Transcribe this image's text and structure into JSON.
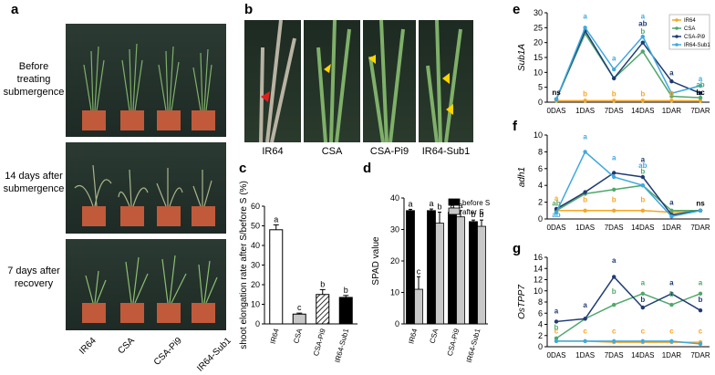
{
  "panel_letters": [
    "a",
    "b",
    "c",
    "d",
    "e",
    "f",
    "g"
  ],
  "panel_a": {
    "rows": [
      "Before treating submergence",
      "14 days after submergence",
      "7 days after recovery"
    ],
    "cultivars": [
      "IR64",
      "CSA",
      "CSA-Pi9",
      "IR64-Sub1"
    ]
  },
  "panel_b": {
    "labels": [
      "IR64",
      "CSA",
      "CSA-Pi9",
      "IR64-Sub1"
    ]
  },
  "colors": {
    "IR64": "#f5a623",
    "CSA": "#4fa86a",
    "CSA-Pi9": "#1f3b73",
    "IR64-Sub1": "#3fa9df"
  },
  "chart_data": [
    {
      "panel": "c",
      "type": "bar",
      "categories": [
        "IR64",
        "CSA",
        "CSA-Pi9",
        "IR64-Sub1"
      ],
      "values": [
        48,
        5,
        15,
        13.5
      ],
      "errors": [
        2.5,
        0.5,
        2.5,
        1
      ],
      "letters": [
        "a",
        "c",
        "b",
        "b"
      ],
      "ylabel": "shoot elongation rate after S/before S (%)",
      "ylim": [
        0,
        60
      ],
      "yticks": [
        0,
        10,
        20,
        30,
        40,
        50,
        60
      ]
    },
    {
      "panel": "d",
      "type": "bar",
      "categories": [
        "IR64",
        "CSA",
        "CSA-Pi9",
        "IR64-Sub1"
      ],
      "series": [
        {
          "name": "before S",
          "values": [
            36,
            36,
            35.5,
            32.5
          ],
          "errors": [
            0.4,
            0.5,
            0.5,
            0.5
          ],
          "letters": [
            "a",
            "a",
            "a",
            "b"
          ]
        },
        {
          "name": "after S",
          "values": [
            11,
            32,
            34,
            31
          ],
          "errors": [
            4,
            3.5,
            2,
            2
          ],
          "letters": [
            "c",
            "b",
            "a",
            "b"
          ]
        }
      ],
      "ylabel": "SPAD value",
      "ylim": [
        0,
        40
      ],
      "yticks": [
        0,
        10,
        20,
        30,
        40
      ]
    },
    {
      "panel": "e",
      "type": "line",
      "x": [
        "0DAS",
        "1DAS",
        "7DAS",
        "14DAS",
        "1DAR",
        "7DAR"
      ],
      "ylabel": "Sub1A",
      "ylim": [
        0,
        30
      ],
      "yticks": [
        0,
        5,
        10,
        15,
        20,
        25,
        30
      ],
      "series": [
        {
          "name": "IR64",
          "values": [
            0.5,
            0.5,
            0.5,
            0.5,
            0.5,
            0.5
          ]
        },
        {
          "name": "CSA",
          "values": [
            1,
            23,
            8,
            17,
            2,
            1.5
          ]
        },
        {
          "name": "CSA-Pi9",
          "values": [
            1,
            24,
            8,
            20,
            7,
            3
          ]
        },
        {
          "name": "IR64-Sub1",
          "values": [
            1,
            25,
            11,
            22,
            3,
            5.5
          ]
        }
      ],
      "annotations": [
        {
          "x": "0DAS",
          "y": 2.5,
          "text": "ns",
          "color": "#000"
        },
        {
          "x": "1DAS",
          "y": 28,
          "text": "a",
          "color": "#3fa9df"
        },
        {
          "x": "1DAS",
          "y": 2,
          "text": "b",
          "color": "#f5a623"
        },
        {
          "x": "7DAS",
          "y": 14,
          "text": "a",
          "color": "#3fa9df"
        },
        {
          "x": "7DAS",
          "y": 2,
          "text": "b",
          "color": "#f5a623"
        },
        {
          "x": "14DAS",
          "y": 28,
          "text": "a",
          "color": "#3fa9df"
        },
        {
          "x": "14DAS",
          "y": 25.5,
          "text": "ab",
          "color": "#1f3b73"
        },
        {
          "x": "14DAS",
          "y": 23,
          "text": "b",
          "color": "#4fa86a"
        },
        {
          "x": "14DAS",
          "y": 2,
          "text": "b",
          "color": "#f5a623"
        },
        {
          "x": "1DAR",
          "y": 9,
          "text": "a",
          "color": "#1f3b73"
        },
        {
          "x": "1DAR",
          "y": 2,
          "text": "b",
          "color": "#f5a623"
        },
        {
          "x": "7DAR",
          "y": 7,
          "text": "a",
          "color": "#3fa9df"
        },
        {
          "x": "7DAR",
          "y": 5,
          "text": "ab",
          "color": "#4fa86a"
        },
        {
          "x": "7DAR",
          "y": 2.5,
          "text": "bc",
          "color": "#000"
        }
      ]
    },
    {
      "panel": "f",
      "type": "line",
      "x": [
        "0DAS",
        "1DAS",
        "7DAS",
        "14DAS",
        "1DAR",
        "7DAR"
      ],
      "ylabel": "adh1",
      "ylim": [
        0,
        10
      ],
      "yticks": [
        0,
        2,
        4,
        6,
        8,
        10
      ],
      "series": [
        {
          "name": "IR64",
          "values": [
            1,
            1,
            1,
            1,
            0.8,
            1
          ]
        },
        {
          "name": "CSA",
          "values": [
            1,
            3,
            3.5,
            4,
            1,
            1
          ]
        },
        {
          "name": "CSA-Pi9",
          "values": [
            1.2,
            3.2,
            5.5,
            5,
            0.5,
            1
          ]
        },
        {
          "name": "IR64-Sub1",
          "values": [
            0.8,
            8,
            5,
            4,
            0.3,
            1
          ]
        }
      ],
      "annotations": [
        {
          "x": "0DAS",
          "y": 2.2,
          "text": "a",
          "color": "#f5a623"
        },
        {
          "x": "0DAS",
          "y": 1.6,
          "text": "ab",
          "color": "#4fa86a"
        },
        {
          "x": "0DAS",
          "y": 0.2,
          "text": "ab",
          "color": "#3fa9df"
        },
        {
          "x": "1DAS",
          "y": 9.5,
          "text": "a",
          "color": "#3fa9df"
        },
        {
          "x": "1DAS",
          "y": 2,
          "text": "b",
          "color": "#f5a623"
        },
        {
          "x": "7DAS",
          "y": 7,
          "text": "a",
          "color": "#3fa9df"
        },
        {
          "x": "7DAS",
          "y": 2,
          "text": "b",
          "color": "#f5a623"
        },
        {
          "x": "14DAS",
          "y": 6.8,
          "text": "a",
          "color": "#1f3b73"
        },
        {
          "x": "14DAS",
          "y": 6.1,
          "text": "ab",
          "color": "#3fa9df"
        },
        {
          "x": "14DAS",
          "y": 5.4,
          "text": "b",
          "color": "#4fa86a"
        },
        {
          "x": "14DAS",
          "y": 2,
          "text": "b",
          "color": "#f5a623"
        },
        {
          "x": "1DAR",
          "y": 1.7,
          "text": "a",
          "color": "#1f3b73"
        },
        {
          "x": "7DAR",
          "y": 1.6,
          "text": "ns",
          "color": "#000"
        }
      ]
    },
    {
      "panel": "g",
      "type": "line",
      "x": [
        "0DAS",
        "1DAS",
        "7DAS",
        "14DAS",
        "1DAR",
        "7DAR"
      ],
      "ylabel": "OsTPP7",
      "ylim": [
        0,
        16
      ],
      "yticks": [
        0,
        2,
        4,
        6,
        8,
        10,
        12,
        14,
        16
      ],
      "series": [
        {
          "name": "IR64",
          "values": [
            1,
            1,
            0.8,
            0.8,
            0.8,
            0.8
          ]
        },
        {
          "name": "CSA",
          "values": [
            1.5,
            5,
            7.5,
            9.5,
            7.5,
            9.5
          ]
        },
        {
          "name": "CSA-Pi9",
          "values": [
            4.5,
            5,
            12.5,
            7,
            9.5,
            6.5
          ]
        },
        {
          "name": "IR64-Sub1",
          "values": [
            1,
            1,
            1,
            1,
            1,
            0.5
          ]
        }
      ],
      "annotations": [
        {
          "x": "0DAS",
          "y": 6,
          "text": "a",
          "color": "#1f3b73"
        },
        {
          "x": "0DAS",
          "y": 3,
          "text": "b",
          "color": "#4fa86a"
        },
        {
          "x": "0DAS",
          "y": 2.4,
          "text": "c",
          "color": "#f5a623"
        },
        {
          "x": "1DAS",
          "y": 7,
          "text": "a",
          "color": "#1f3b73"
        },
        {
          "x": "1DAS",
          "y": 2.4,
          "text": "c",
          "color": "#f5a623"
        },
        {
          "x": "7DAS",
          "y": 15,
          "text": "a",
          "color": "#1f3b73"
        },
        {
          "x": "7DAS",
          "y": 9.5,
          "text": "b",
          "color": "#4fa86a"
        },
        {
          "x": "7DAS",
          "y": 2.4,
          "text": "c",
          "color": "#f5a623"
        },
        {
          "x": "14DAS",
          "y": 11,
          "text": "a",
          "color": "#4fa86a"
        },
        {
          "x": "14DAS",
          "y": 8,
          "text": "b",
          "color": "#1f3b73"
        },
        {
          "x": "14DAS",
          "y": 2.4,
          "text": "c",
          "color": "#f5a623"
        },
        {
          "x": "1DAR",
          "y": 11,
          "text": "a",
          "color": "#1f3b73"
        },
        {
          "x": "1DAR",
          "y": 9,
          "text": "b",
          "color": "#4fa86a"
        },
        {
          "x": "1DAR",
          "y": 2.4,
          "text": "c",
          "color": "#f5a623"
        },
        {
          "x": "7DAR",
          "y": 11,
          "text": "a",
          "color": "#4fa86a"
        },
        {
          "x": "7DAR",
          "y": 8,
          "text": "b",
          "color": "#1f3b73"
        },
        {
          "x": "7DAR",
          "y": 2.4,
          "text": "c",
          "color": "#f5a623"
        }
      ]
    }
  ]
}
